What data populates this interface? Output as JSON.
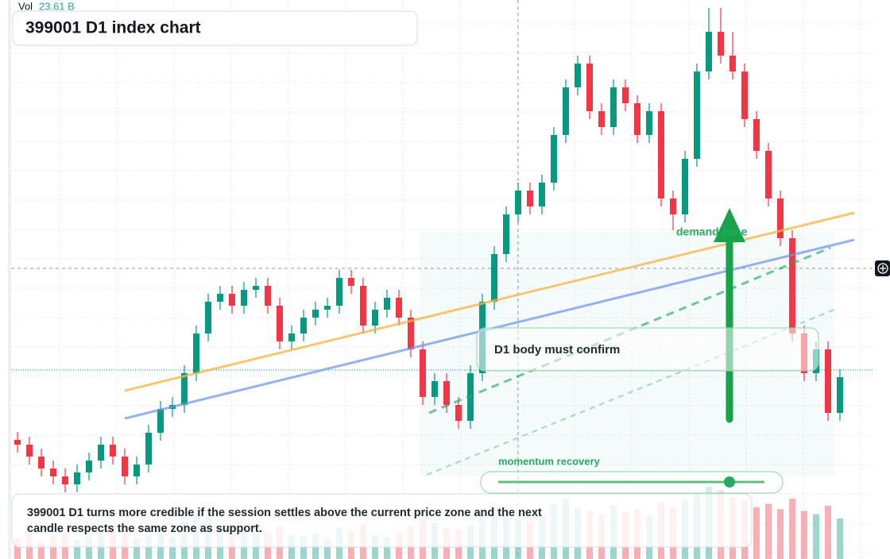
{
  "chart_data": {
    "type": "candlestick",
    "title": "399001 D1 index chart",
    "volume_label": "Vol",
    "volume_value_label": "23.61 B",
    "annotations": {
      "zone": "demand zone",
      "confirm": "D1 body must confirm",
      "momentum": "momentum recovery",
      "note": "399001 D1 turns more credible if the session settles above the current price zone and the next candle respects the same zone as support."
    },
    "up_color": "#089981",
    "down_color": "#f23645",
    "ylim": [
      0,
      704
    ],
    "volume_ylim": [
      0,
      60
    ],
    "candles": [
      [
        150,
        160,
        134,
        144
      ],
      [
        144,
        154,
        119,
        129
      ],
      [
        129,
        139,
        104,
        114
      ],
      [
        114,
        124,
        94,
        104
      ],
      [
        104,
        114,
        84,
        94
      ],
      [
        94,
        119,
        84,
        109
      ],
      [
        109,
        134,
        99,
        124
      ],
      [
        124,
        154,
        114,
        144
      ],
      [
        144,
        154,
        119,
        129
      ],
      [
        129,
        139,
        94,
        104
      ],
      [
        104,
        129,
        94,
        119
      ],
      [
        119,
        169,
        109,
        159
      ],
      [
        159,
        199,
        149,
        189
      ],
      [
        189,
        204,
        179,
        194
      ],
      [
        194,
        244,
        184,
        234
      ],
      [
        234,
        294,
        224,
        284
      ],
      [
        284,
        334,
        274,
        324
      ],
      [
        324,
        344,
        314,
        334
      ],
      [
        334,
        344,
        309,
        319
      ],
      [
        319,
        349,
        309,
        339
      ],
      [
        339,
        354,
        329,
        344
      ],
      [
        344,
        354,
        309,
        319
      ],
      [
        319,
        329,
        264,
        274
      ],
      [
        274,
        294,
        264,
        284
      ],
      [
        284,
        314,
        274,
        304
      ],
      [
        304,
        324,
        294,
        314
      ],
      [
        314,
        329,
        304,
        319
      ],
      [
        319,
        364,
        309,
        354
      ],
      [
        354,
        364,
        334,
        344
      ],
      [
        344,
        354,
        284,
        294
      ],
      [
        294,
        324,
        284,
        314
      ],
      [
        314,
        339,
        304,
        329
      ],
      [
        329,
        339,
        294,
        304
      ],
      [
        304,
        314,
        254,
        264
      ],
      [
        264,
        274,
        194,
        204
      ],
      [
        204,
        234,
        194,
        224
      ],
      [
        224,
        234,
        184,
        194
      ],
      [
        194,
        204,
        164,
        174
      ],
      [
        174,
        244,
        164,
        234
      ],
      [
        234,
        334,
        224,
        324
      ],
      [
        324,
        394,
        314,
        384
      ],
      [
        384,
        444,
        374,
        434
      ],
      [
        434,
        474,
        424,
        464
      ],
      [
        464,
        474,
        434,
        444
      ],
      [
        444,
        484,
        434,
        474
      ],
      [
        474,
        544,
        464,
        534
      ],
      [
        534,
        604,
        524,
        594
      ],
      [
        594,
        634,
        584,
        624
      ],
      [
        624,
        634,
        554,
        564
      ],
      [
        564,
        574,
        534,
        544
      ],
      [
        544,
        604,
        534,
        594
      ],
      [
        594,
        604,
        564,
        574
      ],
      [
        574,
        584,
        524,
        534
      ],
      [
        534,
        574,
        524,
        564
      ],
      [
        564,
        574,
        444,
        454
      ],
      [
        454,
        464,
        414,
        434
      ],
      [
        434,
        514,
        424,
        504
      ],
      [
        504,
        624,
        494,
        614
      ],
      [
        614,
        694,
        604,
        664
      ],
      [
        664,
        694,
        624,
        634
      ],
      [
        634,
        664,
        604,
        614
      ],
      [
        614,
        624,
        544,
        554
      ],
      [
        554,
        564,
        504,
        514
      ],
      [
        514,
        524,
        444,
        454
      ],
      [
        454,
        464,
        394,
        404
      ],
      [
        404,
        414,
        274,
        284
      ],
      [
        284,
        294,
        224,
        234
      ],
      [
        234,
        274,
        224,
        264
      ],
      [
        264,
        274,
        174,
        184
      ],
      [
        184,
        239,
        174,
        229
      ]
    ],
    "volumes": [
      12,
      15,
      10,
      14,
      18,
      11,
      13,
      16,
      20,
      17,
      12,
      14,
      15,
      13,
      22,
      26,
      24,
      18,
      20,
      17,
      15,
      16,
      19,
      14,
      13,
      15,
      12,
      18,
      16,
      20,
      14,
      13,
      15,
      19,
      24,
      21,
      18,
      17,
      20,
      28,
      30,
      26,
      24,
      22,
      25,
      32,
      35,
      30,
      28,
      26,
      31,
      27,
      29,
      25,
      33,
      30,
      34,
      38,
      42,
      40,
      36,
      34,
      30,
      32,
      29,
      35,
      28,
      26,
      31,
      23.61
    ]
  }
}
